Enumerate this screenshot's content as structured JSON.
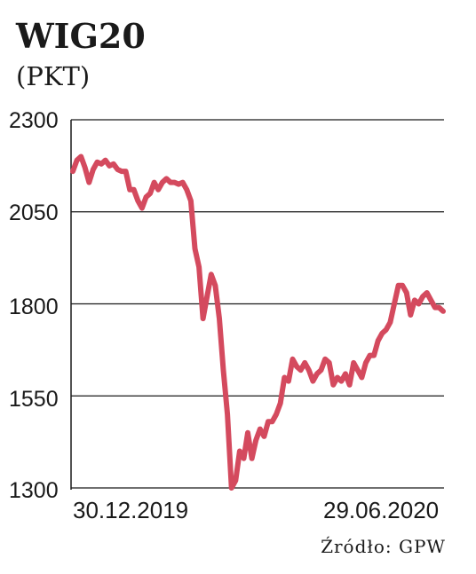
{
  "chart_data": {
    "type": "line",
    "title": "WIG20",
    "subtitle": "(PKT)",
    "ylim": [
      1300,
      2300
    ],
    "yticks": [
      "2300",
      "2050",
      "1800",
      "1550",
      "1300"
    ],
    "ytick_values": [
      2300,
      2050,
      1800,
      1550,
      1300
    ],
    "x_labels": [
      "30.12.2019",
      "29.06.2020"
    ],
    "grid": "horizontal",
    "line_color": "#d44a5e",
    "source": "Źródło: GPW",
    "series": [
      {
        "values": [
          2160,
          2190,
          2200,
          2170,
          2130,
          2165,
          2185,
          2180,
          2190,
          2175,
          2180,
          2165,
          2160,
          2160,
          2110,
          2110,
          2080,
          2060,
          2090,
          2100,
          2130,
          2110,
          2130,
          2140,
          2130,
          2130,
          2125,
          2130,
          2110,
          2080,
          1950,
          1900,
          1760,
          1820,
          1880,
          1850,
          1760,
          1620,
          1500,
          1300,
          1320,
          1400,
          1380,
          1450,
          1380,
          1430,
          1460,
          1440,
          1480,
          1480,
          1500,
          1530,
          1600,
          1590,
          1650,
          1630,
          1620,
          1640,
          1620,
          1590,
          1610,
          1620,
          1650,
          1640,
          1580,
          1600,
          1590,
          1610,
          1580,
          1640,
          1620,
          1600,
          1640,
          1660,
          1660,
          1700,
          1720,
          1730,
          1750,
          1800,
          1850,
          1850,
          1830,
          1770,
          1810,
          1800,
          1820,
          1830,
          1810,
          1790,
          1790,
          1780
        ]
      }
    ]
  }
}
